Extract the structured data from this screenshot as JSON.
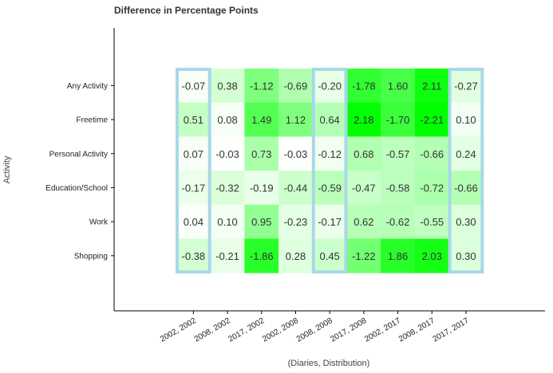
{
  "chart_data": {
    "type": "heatmap",
    "title": "Difference in Percentage Points",
    "xlabel": "(Diaries, Distribution)",
    "ylabel": "Activity",
    "columns": [
      "2002, 2002",
      "2008, 2002",
      "2017, 2002",
      "2002, 2008",
      "2008, 2008",
      "2017, 2008",
      "2002, 2017",
      "2008, 2017",
      "2017, 2017"
    ],
    "rows": [
      "Any Activity",
      "Freetime",
      "Personal Activity",
      "Education/School",
      "Work",
      "Shopping"
    ],
    "values": [
      [
        -0.07,
        0.38,
        -1.12,
        -0.69,
        -0.2,
        -1.78,
        1.6,
        2.11,
        -0.27
      ],
      [
        0.51,
        0.08,
        1.49,
        1.12,
        0.64,
        2.18,
        -1.7,
        -2.21,
        0.1
      ],
      [
        0.07,
        -0.03,
        0.73,
        -0.03,
        -0.12,
        0.68,
        -0.57,
        -0.66,
        0.24
      ],
      [
        -0.17,
        -0.32,
        -0.19,
        -0.44,
        -0.59,
        -0.47,
        -0.58,
        -0.72,
        -0.66
      ],
      [
        0.04,
        0.1,
        0.95,
        -0.23,
        -0.17,
        0.62,
        -0.62,
        -0.55,
        0.3
      ],
      [
        -0.38,
        -0.21,
        -1.86,
        0.28,
        0.45,
        -1.22,
        1.86,
        2.03,
        0.3
      ]
    ],
    "value_labels": [
      [
        "-0.07",
        "0.38",
        "-1.12",
        "-0.69",
        "-0.20",
        "-1.78",
        "1.60",
        "2.11",
        "-0.27"
      ],
      [
        "0.51",
        "0.08",
        "1.49",
        "1.12",
        "0.64",
        "2.18",
        "-1.70",
        "-2.21",
        "0.10"
      ],
      [
        "0.07",
        "-0.03",
        "0.73",
        "-0.03",
        "-0.12",
        "0.68",
        "-0.57",
        "-0.66",
        "0.24"
      ],
      [
        "-0.17",
        "-0.32",
        "-0.19",
        "-0.44",
        "-0.59",
        "-0.47",
        "-0.58",
        "-0.72",
        "-0.66"
      ],
      [
        "0.04",
        "0.10",
        "0.95",
        "-0.23",
        "-0.17",
        "0.62",
        "-0.62",
        "-0.55",
        "0.30"
      ],
      [
        "-0.38",
        "-0.21",
        "-1.86",
        "0.28",
        "0.45",
        "-1.22",
        "1.86",
        "2.03",
        "0.30"
      ]
    ],
    "color_scale": "absolute value, white to green",
    "highlighted_columns": [
      "2002, 2002",
      "2008, 2008",
      "2017, 2017"
    ],
    "colors": {
      "low": "#ffffff",
      "high": "#00ff00",
      "highlight_border": "#a8d8e8",
      "axis": "#000000"
    }
  }
}
